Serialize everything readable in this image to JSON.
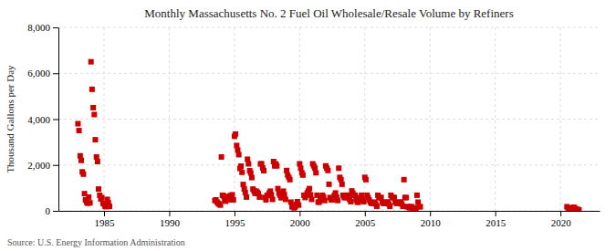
{
  "chart_data": {
    "type": "scatter",
    "title": "Monthly Massachusetts No. 2 Fuel Oil Wholesale/Resale Volume by Refiners",
    "y_label": "Thousand Gallons per Day",
    "source": "Source: U.S. Energy Information Administration",
    "color": "#cc0000",
    "marker": "square",
    "grid": true,
    "xlim": [
      1981.5,
      2023
    ],
    "ylim": [
      0,
      8000
    ],
    "xticks": [
      1985,
      1990,
      1995,
      2000,
      2005,
      2010,
      2015,
      2020
    ],
    "yticks": [
      0,
      {
        "value": 2000,
        "label": "2,000"
      },
      {
        "value": 4000,
        "label": "4,000"
      },
      {
        "value": 6000,
        "label": "6,000"
      },
      {
        "value": 8000,
        "label": "8,000"
      }
    ],
    "x": [
      1983.0,
      1983.08,
      1983.17,
      1983.25,
      1983.33,
      1983.42,
      1983.5,
      1983.58,
      1983.67,
      1983.75,
      1983.83,
      1983.92,
      1984.0,
      1984.08,
      1984.17,
      1984.25,
      1984.33,
      1984.42,
      1984.5,
      1984.58,
      1984.67,
      1984.75,
      1984.83,
      1984.92,
      1985.0,
      1985.08,
      1985.17,
      1985.25,
      1985.33,
      1985.42,
      1993.5,
      1993.58,
      1993.67,
      1993.75,
      1993.83,
      1993.92,
      1994.0,
      1994.08,
      1994.17,
      1994.25,
      1994.33,
      1994.42,
      1994.5,
      1994.58,
      1994.67,
      1994.75,
      1994.83,
      1994.92,
      1995.0,
      1995.08,
      1995.17,
      1995.25,
      1995.33,
      1995.42,
      1995.5,
      1995.58,
      1995.67,
      1995.75,
      1995.83,
      1995.92,
      1996.0,
      1996.08,
      1996.17,
      1996.25,
      1996.33,
      1996.42,
      1996.5,
      1996.58,
      1996.67,
      1996.75,
      1996.83,
      1996.92,
      1997.0,
      1997.08,
      1997.17,
      1997.25,
      1997.33,
      1997.42,
      1997.5,
      1997.58,
      1997.67,
      1997.75,
      1997.83,
      1997.92,
      1998.0,
      1998.08,
      1998.17,
      1998.25,
      1998.33,
      1998.42,
      1998.5,
      1998.58,
      1998.67,
      1998.75,
      1998.83,
      1998.92,
      1999.0,
      1999.08,
      1999.17,
      1999.25,
      1999.33,
      1999.42,
      1999.5,
      1999.58,
      1999.67,
      1999.75,
      1999.83,
      1999.92,
      2000.0,
      2000.08,
      2000.17,
      2000.25,
      2000.33,
      2000.42,
      2000.5,
      2000.58,
      2000.67,
      2000.75,
      2000.83,
      2000.92,
      2001.0,
      2001.08,
      2001.17,
      2001.25,
      2001.33,
      2001.42,
      2001.5,
      2001.58,
      2001.67,
      2001.75,
      2001.83,
      2001.92,
      2002.0,
      2002.08,
      2002.17,
      2002.25,
      2002.33,
      2002.42,
      2002.5,
      2002.58,
      2002.67,
      2002.75,
      2002.83,
      2002.92,
      2003.0,
      2003.08,
      2003.17,
      2003.25,
      2003.33,
      2003.42,
      2003.5,
      2003.58,
      2003.67,
      2003.75,
      2003.83,
      2003.92,
      2004.0,
      2004.08,
      2004.17,
      2004.25,
      2004.33,
      2004.42,
      2004.5,
      2004.58,
      2004.67,
      2004.75,
      2004.83,
      2004.92,
      2005.0,
      2005.08,
      2005.17,
      2005.25,
      2005.33,
      2005.42,
      2005.5,
      2005.58,
      2005.67,
      2005.75,
      2005.83,
      2005.92,
      2006.0,
      2006.08,
      2006.17,
      2006.25,
      2006.33,
      2006.42,
      2006.5,
      2006.58,
      2006.67,
      2006.75,
      2006.83,
      2006.92,
      2007.0,
      2007.08,
      2007.17,
      2007.25,
      2007.33,
      2007.42,
      2007.5,
      2007.58,
      2007.67,
      2007.75,
      2007.83,
      2007.92,
      2008.0,
      2008.08,
      2008.17,
      2008.25,
      2008.33,
      2008.42,
      2008.5,
      2008.58,
      2008.67,
      2008.75,
      2008.83,
      2008.92,
      2009.0,
      2009.08,
      2009.17,
      2009.25,
      2020.5,
      2020.58,
      2020.67,
      2020.75,
      2020.83,
      2020.92,
      2021.0,
      2021.08,
      2021.17,
      2021.25,
      2021.33,
      2021.42
    ],
    "values": [
      3800,
      3500,
      2400,
      2200,
      1700,
      1600,
      750,
      480,
      380,
      330,
      600,
      350,
      6500,
      5300,
      4500,
      4200,
      3100,
      2350,
      2150,
      950,
      680,
      520,
      580,
      330,
      300,
      200,
      180,
      500,
      350,
      200,
      450,
      480,
      380,
      330,
      290,
      250,
      2350,
      680,
      650,
      480,
      420,
      520,
      570,
      620,
      660,
      480,
      700,
      480,
      3250,
      3350,
      2850,
      2650,
      2450,
      1850,
      1950,
      1680,
      1150,
      960,
      800,
      600,
      2250,
      2050,
      1750,
      1650,
      1450,
      950,
      870,
      760,
      860,
      810,
      750,
      600,
      2050,
      2050,
      1870,
      1750,
      580,
      480,
      670,
      670,
      770,
      860,
      700,
      500,
      2150,
      1960,
      2050,
      1960,
      970,
      770,
      680,
      570,
      770,
      860,
      700,
      500,
      1760,
      1560,
      1460,
      1360,
      380,
      180,
      180,
      130,
      180,
      280,
      400,
      250,
      2050,
      1860,
      1660,
      1560,
      680,
      580,
      680,
      780,
      870,
      970,
      700,
      500,
      2050,
      1960,
      1860,
      1660,
      680,
      380,
      380,
      480,
      580,
      680,
      600,
      450,
      1960,
      1860,
      1760,
      1160,
      580,
      480,
      480,
      580,
      680,
      780,
      600,
      450,
      1860,
      1460,
      1360,
      1160,
      680,
      580,
      580,
      680,
      580,
      680,
      500,
      400,
      870,
      770,
      680,
      680,
      480,
      380,
      380,
      480,
      580,
      680,
      500,
      400,
      1460,
      1360,
      680,
      580,
      480,
      380,
      330,
      330,
      330,
      380,
      300,
      200,
      680,
      580,
      580,
      580,
      380,
      330,
      330,
      330,
      380,
      380,
      300,
      200,
      680,
      580,
      580,
      580,
      380,
      330,
      330,
      330,
      380,
      380,
      300,
      200,
      1360,
      580,
      580,
      180,
      180,
      130,
      180,
      180,
      130,
      130,
      100,
      80,
      680,
      380,
      180,
      180,
      180,
      130,
      110,
      100,
      80,
      60,
      160,
      140,
      80,
      60,
      60,
      40
    ]
  }
}
